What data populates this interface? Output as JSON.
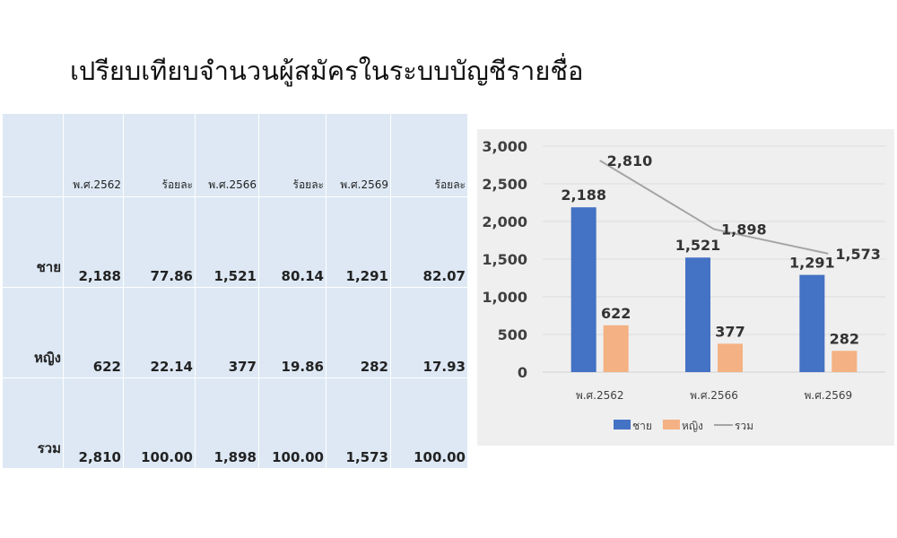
{
  "title": "เปรียบเทียบจำนวนผู้สมัครในระบบบัญชีรายชื่อ",
  "table": {
    "headers": [
      "",
      "พ.ศ.2562",
      "ร้อยละ",
      "พ.ศ.2566",
      "ร้อยละ",
      "พ.ศ.2569",
      "ร้อยละ"
    ],
    "rows": [
      [
        "ชาย",
        "2,188",
        "77.86",
        "1,521",
        "80.14",
        "1,291",
        "82.07"
      ],
      [
        "หญิง",
        "622",
        "22.14",
        "377",
        "19.86",
        "282",
        "17.93"
      ],
      [
        "รวม",
        "2,810",
        "100.00",
        "1,898",
        "100.00",
        "1,573",
        "100.00"
      ]
    ]
  },
  "chart_data": {
    "type": "bar",
    "categories": [
      "พ.ศ.2562",
      "พ.ศ.2566",
      "พ.ศ.2569"
    ],
    "series": [
      {
        "name": "ชาย",
        "kind": "bar",
        "color": "#4472c4",
        "values": [
          2188,
          1521,
          1291
        ],
        "labels": [
          "2,188",
          "1,521",
          "1,291"
        ]
      },
      {
        "name": "หญิง",
        "kind": "bar",
        "color": "#f4b183",
        "values": [
          622,
          377,
          282
        ],
        "labels": [
          "622",
          "377",
          "282"
        ]
      },
      {
        "name": "รวม",
        "kind": "line",
        "color": "#a5a5a5",
        "values": [
          2810,
          1898,
          1573
        ],
        "labels": [
          "2,810",
          "1,898",
          "1,573"
        ]
      }
    ],
    "ylim": [
      0,
      3000
    ],
    "yticks": [
      "0",
      "500",
      "1,000",
      "1,500",
      "2,000",
      "2,500",
      "3,000"
    ],
    "grid": true,
    "legend": "bottom"
  }
}
